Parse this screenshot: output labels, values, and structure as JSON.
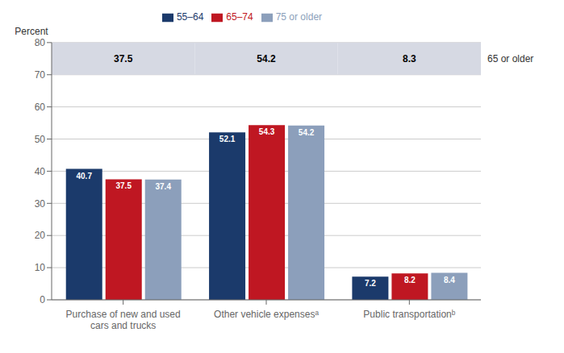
{
  "chart_data": {
    "type": "bar",
    "ylabel": "Percent",
    "categories": [
      "Purchase of new and used\ncars and trucks",
      "Other vehicle expensesᵃ",
      "Public transportationᵇ"
    ],
    "series": [
      {
        "name": "55–64",
        "color": "#1b3a6b",
        "values": [
          40.7,
          52.1,
          7.2
        ]
      },
      {
        "name": "65–74",
        "color": "#bf1722",
        "values": [
          37.5,
          54.3,
          8.2
        ]
      },
      {
        "name": "75 or older",
        "color": "#8c9fbb",
        "values": [
          37.4,
          54.2,
          8.4
        ]
      }
    ],
    "ylim": [
      0,
      80
    ],
    "yticks": [
      0,
      10,
      20,
      30,
      40,
      50,
      60,
      70,
      80
    ],
    "grid": true,
    "legend": "top",
    "data_labels": true,
    "summary_values": [
      37.5,
      54.2,
      8.3
    ],
    "summary_label": "65 or older"
  }
}
